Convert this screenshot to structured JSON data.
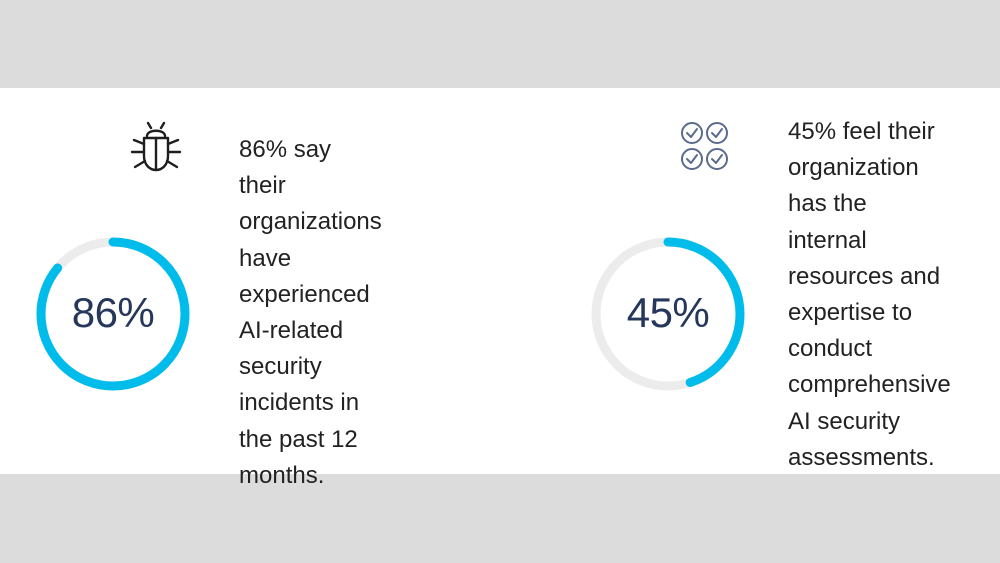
{
  "colors": {
    "accent": "#00bceb",
    "track": "#ececec",
    "value_text": "#26375c",
    "icon": "#1e1e1e",
    "icon_alt": "#5a6b8c"
  },
  "stats": [
    {
      "value_label": "86%",
      "progress": 0.86,
      "icon": "bug-icon",
      "lines": [
        "86% say their",
        "organizations",
        "have",
        "experienced",
        "AI-related",
        "security",
        "incidents in",
        "the past 12",
        "months."
      ]
    },
    {
      "value_label": "45%",
      "progress": 0.45,
      "icon": "checklist-icon",
      "lines": [
        "45% feel their",
        "organization",
        "has the",
        "internal",
        "resources and",
        "expertise to",
        "conduct",
        "comprehensive",
        "AI security",
        "assessments."
      ]
    }
  ]
}
